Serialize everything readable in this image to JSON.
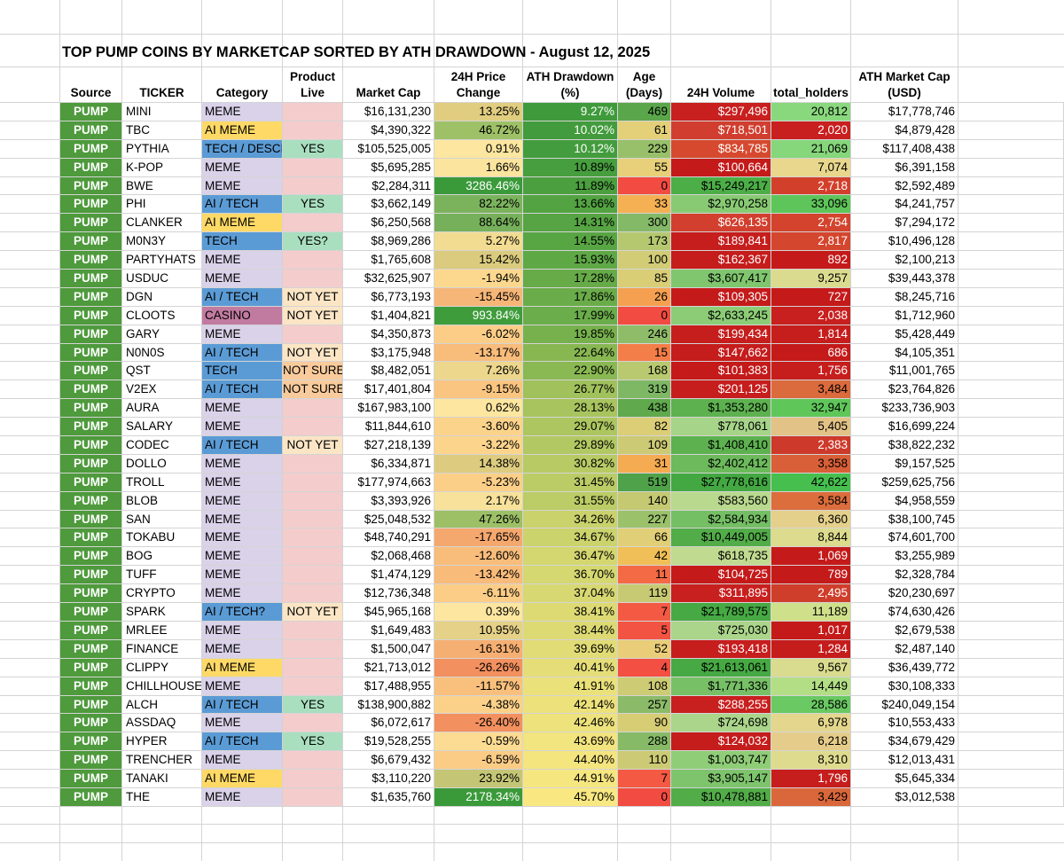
{
  "title": "TOP PUMP COINS BY MARKETCAP SORTED BY ATH DRAWDOWN - August 12, 2025",
  "headers": {
    "source": "Source",
    "ticker": "TICKER",
    "category": "Category",
    "product_live": "Product\nLive",
    "market_cap": "Market Cap",
    "price_change": "24H Price\nChange",
    "ath_drawdown": "ATH Drawdown\n(%)",
    "age": "Age\n(Days)",
    "volume": "24H Volume",
    "holders": "total_holders",
    "ath_market_cap": "ATH Market Cap\n(USD)"
  },
  "colors": {
    "source_green": "#4e9a3c",
    "category_meme": "#d9d2e9",
    "category_ai_meme": "#ffd966",
    "category_tech": "#5b9bd5",
    "category_casino": "#c27ba0",
    "live_yes": "#a9dfbf",
    "live_not_yet": "#fbe5c5",
    "live_blank": "#f4cccc",
    "live_not_sure": "#f9cb9c"
  },
  "rows": [
    {
      "source": "PUMP",
      "ticker": "MINI",
      "category": "MEME",
      "live": "",
      "market_cap": "$16,131,230",
      "price_change": "13.25%",
      "ath_drawdown": "9.27%",
      "age": "469",
      "volume": "$297,496",
      "holders": "20,812",
      "ath_market_cap": "$17,778,746",
      "pc_bg": "#e1cd80",
      "dd_bg": "#3f9a3b",
      "age_bg": "#5aa64b",
      "vol_bg": "#c81f1f",
      "hold_bg": "#8ad87e"
    },
    {
      "source": "PUMP",
      "ticker": "TBC",
      "category": "AI MEME",
      "live": "",
      "market_cap": "$4,390,322",
      "price_change": "46.72%",
      "ath_drawdown": "10.02%",
      "age": "61",
      "volume": "$718,501",
      "holders": "2,020",
      "ath_market_cap": "$4,879,428",
      "pc_bg": "#9ec167",
      "dd_bg": "#429b3c",
      "age_bg": "#e3d078",
      "vol_bg": "#d13e2f",
      "hold_bg": "#c81f1f"
    },
    {
      "source": "PUMP",
      "ticker": "PYTHIA",
      "category": "TECH / DESCI",
      "live": "YES",
      "market_cap": "$105,525,005",
      "price_change": "0.91%",
      "ath_drawdown": "10.12%",
      "age": "229",
      "volume": "$834,785",
      "holders": "21,069",
      "ath_market_cap": "$117,408,438",
      "pc_bg": "#fde6a0",
      "dd_bg": "#439c3d",
      "age_bg": "#98c06a",
      "vol_bg": "#d6492f",
      "hold_bg": "#86d67b"
    },
    {
      "source": "PUMP",
      "ticker": "K-POP",
      "category": "MEME",
      "live": "",
      "market_cap": "$5,695,285",
      "price_change": "1.66%",
      "ath_drawdown": "10.89%",
      "age": "55",
      "volume": "$100,664",
      "holders": "7,074",
      "ath_market_cap": "$6,391,158",
      "pc_bg": "#fbe49d",
      "dd_bg": "#479e3e",
      "age_bg": "#e7d079",
      "vol_bg": "#c41a1a",
      "hold_bg": "#e8d78d"
    },
    {
      "source": "PUMP",
      "ticker": "BWE",
      "category": "MEME",
      "live": "",
      "market_cap": "$2,284,311",
      "price_change": "3286.46%",
      "ath_drawdown": "11.89%",
      "age": "0",
      "volume": "$15,249,217",
      "holders": "2,718",
      "ath_market_cap": "$2,592,489",
      "pc_bg": "#3a9a3a",
      "dd_bg": "#4b9f3f",
      "age_bg": "#f24b41",
      "vol_bg": "#4cae46",
      "hold_bg": "#d2402c"
    },
    {
      "source": "PUMP",
      "ticker": "PHI",
      "category": "AI / TECH",
      "live": "YES",
      "market_cap": "$3,662,149",
      "price_change": "82.22%",
      "ath_drawdown": "13.66%",
      "age": "33",
      "volume": "$2,970,258",
      "holders": "33,096",
      "ath_market_cap": "$4,241,757",
      "pc_bg": "#7bb35d",
      "dd_bg": "#53a342",
      "age_bg": "#f5b054",
      "vol_bg": "#88ca73",
      "hold_bg": "#5ec55a"
    },
    {
      "source": "PUMP",
      "ticker": "CLANKER",
      "category": "AI MEME",
      "live": "",
      "market_cap": "$6,250,568",
      "price_change": "88.64%",
      "ath_drawdown": "14.31%",
      "age": "300",
      "volume": "$626,135",
      "holders": "2,754",
      "ath_market_cap": "$7,294,172",
      "pc_bg": "#76b05b",
      "dd_bg": "#56a443",
      "age_bg": "#84b967",
      "vol_bg": "#d23f2e",
      "hold_bg": "#d3432d"
    },
    {
      "source": "PUMP",
      "ticker": "M0N3Y",
      "category": "TECH",
      "live": "YES?",
      "market_cap": "$8,969,286",
      "price_change": "5.27%",
      "ath_drawdown": "14.55%",
      "age": "173",
      "volume": "$189,841",
      "holders": "2,817",
      "ath_market_cap": "$10,496,128",
      "pc_bg": "#f2dc92",
      "dd_bg": "#58a544",
      "age_bg": "#b5c870",
      "vol_bg": "#c61d1d",
      "hold_bg": "#d4462e"
    },
    {
      "source": "PUMP",
      "ticker": "PARTYHATS",
      "category": "MEME",
      "live": "",
      "market_cap": "$1,765,608",
      "price_change": "15.42%",
      "ath_drawdown": "15.93%",
      "age": "100",
      "volume": "$162,367",
      "holders": "892",
      "ath_market_cap": "$2,100,213",
      "pc_bg": "#dacb7e",
      "dd_bg": "#5fa846",
      "age_bg": "#d1cc75",
      "vol_bg": "#c51c1c",
      "hold_bg": "#c41a1a"
    },
    {
      "source": "PUMP",
      "ticker": "USDUC",
      "category": "MEME",
      "live": "",
      "market_cap": "$32,625,907",
      "price_change": "-1.94%",
      "ath_drawdown": "17.28%",
      "age": "85",
      "volume": "$3,607,417",
      "holders": "9,257",
      "ath_market_cap": "$39,443,378",
      "pc_bg": "#fcd88f",
      "dd_bg": "#67ab48",
      "age_bg": "#d9ce76",
      "vol_bg": "#7fc66e",
      "hold_bg": "#dbdb8f"
    },
    {
      "source": "PUMP",
      "ticker": "DGN",
      "category": "AI / TECH",
      "live": "NOT YET",
      "market_cap": "$6,773,193",
      "price_change": "-15.45%",
      "ath_drawdown": "17.86%",
      "age": "26",
      "volume": "$109,305",
      "holders": "727",
      "ath_market_cap": "$8,245,716",
      "pc_bg": "#f6b677",
      "dd_bg": "#6aac49",
      "age_bg": "#f5a050",
      "vol_bg": "#c41a1a",
      "hold_bg": "#c41a1a"
    },
    {
      "source": "PUMP",
      "ticker": "CLOOTS",
      "category": "CASINO",
      "live": "NOT YET",
      "market_cap": "$1,404,821",
      "price_change": "993.84%",
      "ath_drawdown": "17.99%",
      "age": "0",
      "volume": "$2,633,245",
      "holders": "2,038",
      "ath_market_cap": "$1,712,960",
      "pc_bg": "#3f9c3b",
      "dd_bg": "#6bad4a",
      "age_bg": "#f24b41",
      "vol_bg": "#8ccc76",
      "hold_bg": "#c81f1f"
    },
    {
      "source": "PUMP",
      "ticker": "GARY",
      "category": "MEME",
      "live": "",
      "market_cap": "$4,350,873",
      "price_change": "-6.02%",
      "ath_drawdown": "19.85%",
      "age": "246",
      "volume": "$199,434",
      "holders": "1,814",
      "ath_market_cap": "$5,428,449",
      "pc_bg": "#fbcd87",
      "dd_bg": "#77b14d",
      "age_bg": "#8fbc69",
      "vol_bg": "#c61d1d",
      "hold_bg": "#c61d1d"
    },
    {
      "source": "PUMP",
      "ticker": "N0N0S",
      "category": "AI / TECH",
      "live": "NOT YET",
      "market_cap": "$3,175,948",
      "price_change": "-13.17%",
      "ath_drawdown": "22.64%",
      "age": "15",
      "volume": "$147,662",
      "holders": "686",
      "ath_market_cap": "$4,105,351",
      "pc_bg": "#f8bc7b",
      "dd_bg": "#88b752",
      "age_bg": "#f47e49",
      "vol_bg": "#c51c1c",
      "hold_bg": "#c41a1a"
    },
    {
      "source": "PUMP",
      "ticker": "QST",
      "category": "TECH",
      "live": "NOT SURE",
      "market_cap": "$8,482,051",
      "price_change": "7.26%",
      "ath_drawdown": "22.90%",
      "age": "168",
      "volume": "$101,383",
      "holders": "1,756",
      "ath_market_cap": "$11,001,765",
      "pc_bg": "#ecd78d",
      "dd_bg": "#8ab853",
      "age_bg": "#b8c970",
      "vol_bg": "#c41a1a",
      "hold_bg": "#c61d1d"
    },
    {
      "source": "PUMP",
      "ticker": "V2EX",
      "category": "AI / TECH",
      "live": "NOT SURE",
      "market_cap": "$17,401,804",
      "price_change": "-9.15%",
      "ath_drawdown": "26.77%",
      "age": "319",
      "volume": "$201,125",
      "holders": "3,484",
      "ath_market_cap": "$23,764,826",
      "pc_bg": "#fac580",
      "dd_bg": "#a0c15b",
      "age_bg": "#7eb865",
      "vol_bg": "#c61d1d",
      "hold_bg": "#db6a3c"
    },
    {
      "source": "PUMP",
      "ticker": "AURA",
      "category": "MEME",
      "live": "",
      "market_cap": "$167,983,100",
      "price_change": "0.62%",
      "ath_drawdown": "28.13%",
      "age": "438",
      "volume": "$1,353,280",
      "holders": "32,947",
      "ath_market_cap": "$233,736,903",
      "pc_bg": "#fde6a0",
      "dd_bg": "#a8c45e",
      "age_bg": "#60a94d",
      "vol_bg": "#5db24f",
      "hold_bg": "#5fc65a"
    },
    {
      "source": "PUMP",
      "ticker": "SALARY",
      "category": "MEME",
      "live": "",
      "market_cap": "$11,844,610",
      "price_change": "-3.60%",
      "ath_drawdown": "29.07%",
      "age": "82",
      "volume": "$778,061",
      "holders": "5,405",
      "ath_market_cap": "$16,699,224",
      "pc_bg": "#fcd38b",
      "dd_bg": "#adc660",
      "age_bg": "#dbce76",
      "vol_bg": "#a6d489",
      "hold_bg": "#e2c286"
    },
    {
      "source": "PUMP",
      "ticker": "CODEC",
      "category": "AI / TECH",
      "live": "NOT YET",
      "market_cap": "$27,218,139",
      "price_change": "-3.22%",
      "ath_drawdown": "29.89%",
      "age": "109",
      "volume": "$1,408,410",
      "holders": "2,383",
      "ath_market_cap": "$38,822,232",
      "pc_bg": "#fcd48c",
      "dd_bg": "#b2c862",
      "age_bg": "#ccca74",
      "vol_bg": "#5db24f",
      "hold_bg": "#cd392a"
    },
    {
      "source": "PUMP",
      "ticker": "DOLLO",
      "category": "MEME",
      "live": "",
      "market_cap": "$6,334,871",
      "price_change": "14.38%",
      "ath_drawdown": "30.82%",
      "age": "31",
      "volume": "$2,402,412",
      "holders": "3,358",
      "ath_market_cap": "$9,157,525",
      "pc_bg": "#ddcc7f",
      "dd_bg": "#b7ca64",
      "age_bg": "#f5ab52",
      "vol_bg": "#6cba5c",
      "hold_bg": "#d95f38"
    },
    {
      "source": "PUMP",
      "ticker": "TROLL",
      "category": "MEME",
      "live": "",
      "market_cap": "$177,974,663",
      "price_change": "-5.23%",
      "ath_drawdown": "31.45%",
      "age": "519",
      "volume": "$27,778,616",
      "holders": "42,622",
      "ath_market_cap": "$259,625,756",
      "pc_bg": "#fbcf88",
      "dd_bg": "#bbcc66",
      "age_bg": "#4fa24a",
      "vol_bg": "#43a842",
      "hold_bg": "#46bf4e"
    },
    {
      "source": "PUMP",
      "ticker": "BLOB",
      "category": "MEME",
      "live": "",
      "market_cap": "$3,393,926",
      "price_change": "2.17%",
      "ath_drawdown": "31.55%",
      "age": "140",
      "volume": "$583,560",
      "holders": "3,584",
      "ath_market_cap": "$4,958,559",
      "pc_bg": "#f8e29b",
      "dd_bg": "#bccc66",
      "age_bg": "#c4c972",
      "vol_bg": "#b9d98e",
      "hold_bg": "#dc6d3d"
    },
    {
      "source": "PUMP",
      "ticker": "SAN",
      "category": "MEME",
      "live": "",
      "market_cap": "$25,048,532",
      "price_change": "47.26%",
      "ath_drawdown": "34.26%",
      "age": "227",
      "volume": "$2,584,934",
      "holders": "6,360",
      "ath_market_cap": "$38,100,745",
      "pc_bg": "#9dc066",
      "dd_bg": "#c9d26b",
      "age_bg": "#9bc16b",
      "vol_bg": "#74be64",
      "hold_bg": "#e5d08b"
    },
    {
      "source": "PUMP",
      "ticker": "TOKABU",
      "category": "MEME",
      "live": "",
      "market_cap": "$48,740,291",
      "price_change": "-17.65%",
      "ath_drawdown": "34.67%",
      "age": "66",
      "volume": "$10,449,005",
      "holders": "8,844",
      "ath_market_cap": "$74,601,700",
      "pc_bg": "#f5a86e",
      "dd_bg": "#cbd36c",
      "age_bg": "#e1cf77",
      "vol_bg": "#52ac48",
      "hold_bg": "#dcdb8e"
    },
    {
      "source": "PUMP",
      "ticker": "BOG",
      "category": "MEME",
      "live": "",
      "market_cap": "$2,068,468",
      "price_change": "-12.60%",
      "ath_drawdown": "36.47%",
      "age": "42",
      "volume": "$618,735",
      "holders": "1,069",
      "ath_market_cap": "$3,255,989",
      "pc_bg": "#f8bc7b",
      "dd_bg": "#d4d670",
      "age_bg": "#f0bf57",
      "vol_bg": "#c0db90",
      "hold_bg": "#c41a1a"
    },
    {
      "source": "PUMP",
      "ticker": "TUFF",
      "category": "MEME",
      "live": "",
      "market_cap": "$1,474,129",
      "price_change": "-13.42%",
      "ath_drawdown": "36.70%",
      "age": "11",
      "volume": "$104,725",
      "holders": "789",
      "ath_market_cap": "$2,328,784",
      "pc_bg": "#f8bb7a",
      "dd_bg": "#d5d771",
      "age_bg": "#f46a45",
      "vol_bg": "#c41a1a",
      "hold_bg": "#c41a1a"
    },
    {
      "source": "PUMP",
      "ticker": "CRYPTO",
      "category": "MEME",
      "live": "",
      "market_cap": "$12,736,348",
      "price_change": "-6.11%",
      "ath_drawdown": "37.04%",
      "age": "119",
      "volume": "$311,895",
      "holders": "2,495",
      "ath_market_cap": "$20,230,697",
      "pc_bg": "#fbcd87",
      "dd_bg": "#d7d872",
      "age_bg": "#c8ca73",
      "vol_bg": "#c81f1f",
      "hold_bg": "#cf3d2b"
    },
    {
      "source": "PUMP",
      "ticker": "SPARK",
      "category": "AI / TECH?",
      "live": "NOT YET",
      "market_cap": "$45,965,168",
      "price_change": "0.39%",
      "ath_drawdown": "38.41%",
      "age": "7",
      "volume": "$21,789,575",
      "holders": "11,189",
      "ath_market_cap": "$74,630,426",
      "pc_bg": "#fde6a0",
      "dd_bg": "#ddda74",
      "age_bg": "#f45a43",
      "vol_bg": "#46a943",
      "hold_bg": "#cfe08b"
    },
    {
      "source": "PUMP",
      "ticker": "MRLEE",
      "category": "MEME",
      "live": "",
      "market_cap": "$1,649,483",
      "price_change": "10.95%",
      "ath_drawdown": "38.44%",
      "age": "5",
      "volume": "$725,030",
      "holders": "1,017",
      "ath_market_cap": "$2,679,538",
      "pc_bg": "#e5d187",
      "dd_bg": "#ddda74",
      "age_bg": "#f35343",
      "vol_bg": "#aad58a",
      "hold_bg": "#c41a1a"
    },
    {
      "source": "PUMP",
      "ticker": "FINANCE",
      "category": "MEME",
      "live": "",
      "market_cap": "$1,500,047",
      "price_change": "-16.31%",
      "ath_drawdown": "39.69%",
      "age": "52",
      "volume": "$193,418",
      "holders": "1,284",
      "ath_market_cap": "$2,487,140",
      "pc_bg": "#f6af72",
      "dd_bg": "#e2dc76",
      "age_bg": "#e9cd78",
      "vol_bg": "#c61d1d",
      "hold_bg": "#c51c1c"
    },
    {
      "source": "PUMP",
      "ticker": "CLIPPY",
      "category": "AI MEME",
      "live": "",
      "market_cap": "$21,713,012",
      "price_change": "-26.26%",
      "ath_drawdown": "40.41%",
      "age": "4",
      "volume": "$21,613,061",
      "holders": "9,567",
      "ath_market_cap": "$36,439,772",
      "pc_bg": "#f2905f",
      "dd_bg": "#e5de78",
      "age_bg": "#f34f42",
      "vol_bg": "#46a943",
      "hold_bg": "#d9db8e"
    },
    {
      "source": "PUMP",
      "ticker": "CHILLHOUSE",
      "category": "MEME",
      "live": "",
      "market_cap": "$17,488,955",
      "price_change": "-11.57%",
      "ath_drawdown": "41.91%",
      "age": "108",
      "volume": "$1,771,336",
      "holders": "14,449",
      "ath_market_cap": "$30,108,333",
      "pc_bg": "#f9c07d",
      "dd_bg": "#ebe17b",
      "age_bg": "#cdcb74",
      "vol_bg": "#77c066",
      "hold_bg": "#b3de86"
    },
    {
      "source": "PUMP",
      "ticker": "ALCH",
      "category": "AI / TECH",
      "live": "YES",
      "market_cap": "$138,900,882",
      "price_change": "-4.38%",
      "ath_drawdown": "42.14%",
      "age": "257",
      "volume": "$288,255",
      "holders": "28,586",
      "ath_market_cap": "$240,049,154",
      "pc_bg": "#fbd18a",
      "dd_bg": "#ece17b",
      "age_bg": "#8bbb68",
      "vol_bg": "#c81f1f",
      "hold_bg": "#6ac962"
    },
    {
      "source": "PUMP",
      "ticker": "ASSDAQ",
      "category": "MEME",
      "live": "",
      "market_cap": "$6,072,617",
      "price_change": "-26.40%",
      "ath_drawdown": "42.46%",
      "age": "90",
      "volume": "$724,698",
      "holders": "6,978",
      "ath_market_cap": "$10,553,433",
      "pc_bg": "#f2905f",
      "dd_bg": "#ede27c",
      "age_bg": "#d6cd75",
      "vol_bg": "#aad58a",
      "hold_bg": "#e4d78d"
    },
    {
      "source": "PUMP",
      "ticker": "HYPER",
      "category": "AI / TECH",
      "live": "YES",
      "market_cap": "$19,528,255",
      "price_change": "-0.59%",
      "ath_drawdown": "43.69%",
      "age": "288",
      "volume": "$124,032",
      "holders": "6,218",
      "ath_market_cap": "$34,679,429",
      "pc_bg": "#fcdc93",
      "dd_bg": "#f2e47e",
      "age_bg": "#86ba67",
      "vol_bg": "#c51c1c",
      "hold_bg": "#e6cc8a"
    },
    {
      "source": "PUMP",
      "ticker": "TRENCHER",
      "category": "MEME",
      "live": "",
      "market_cap": "$6,679,432",
      "price_change": "-6.59%",
      "ath_drawdown": "44.40%",
      "age": "110",
      "volume": "$1,003,747",
      "holders": "8,310",
      "ath_market_cap": "$12,013,431",
      "pc_bg": "#fbcc86",
      "dd_bg": "#f4e57f",
      "age_bg": "#ccca74",
      "vol_bg": "#8fcd77",
      "hold_bg": "#dfdb8e"
    },
    {
      "source": "PUMP",
      "ticker": "TANAKI",
      "category": "AI MEME",
      "live": "",
      "market_cap": "$3,110,220",
      "price_change": "23.92%",
      "ath_drawdown": "44.91%",
      "age": "7",
      "volume": "$3,905,147",
      "holders": "1,796",
      "ath_market_cap": "$5,645,334",
      "pc_bg": "#c4c676",
      "dd_bg": "#f6e680",
      "age_bg": "#f45a43",
      "vol_bg": "#7dc46c",
      "hold_bg": "#c61d1d"
    },
    {
      "source": "PUMP",
      "ticker": "THE",
      "category": "MEME",
      "live": "",
      "market_cap": "$1,635,760",
      "price_change": "2178.34%",
      "ath_drawdown": "45.70%",
      "age": "0",
      "volume": "$10,478,881",
      "holders": "3,429",
      "ath_market_cap": "$3,012,538",
      "pc_bg": "#3a9a3a",
      "dd_bg": "#f9e882",
      "age_bg": "#f24b41",
      "vol_bg": "#52ac48",
      "hold_bg": "#da673b"
    }
  ]
}
